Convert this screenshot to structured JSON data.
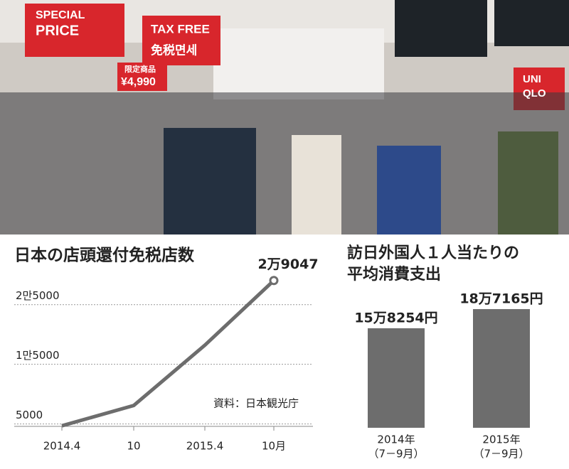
{
  "photo": {
    "signs": [
      "SPECIAL",
      "PRICE",
      "TAX FREE",
      "免税면세",
      "限定商品",
      "¥4,990",
      "UNI",
      "QLO"
    ]
  },
  "chart_data": [
    {
      "type": "line",
      "title": "日本の店頭還付免税店数",
      "categories": [
        "2014.4",
        "10",
        "2015.4",
        "10月"
      ],
      "values": [
        4700,
        8100,
        18200,
        29047
      ],
      "value_labels": [
        null,
        null,
        null,
        "2万9047"
      ],
      "color": "#6d6d6d",
      "ylim": [
        4600,
        30800
      ],
      "yticks": [
        {
          "value": 5000,
          "label": "5000"
        },
        {
          "value": 15000,
          "label": "1만5000"
        },
        {
          "value": 25000,
          "label": "2만5000"
        }
      ],
      "grid": true,
      "source": "資料：日本観光庁"
    },
    {
      "type": "bar",
      "title": [
        "訪日外国人１人当たりの",
        "平均消費支出"
      ],
      "categories": [
        [
          "2014年",
          "（7－9月）"
        ],
        [
          "2015年",
          "（7－9月）"
        ]
      ],
      "values": [
        158254,
        187165
      ],
      "value_labels": [
        "15万8254円",
        "18万7165円"
      ],
      "color": "#6d6d6d",
      "ylim": [
        8000,
        200000
      ]
    }
  ]
}
